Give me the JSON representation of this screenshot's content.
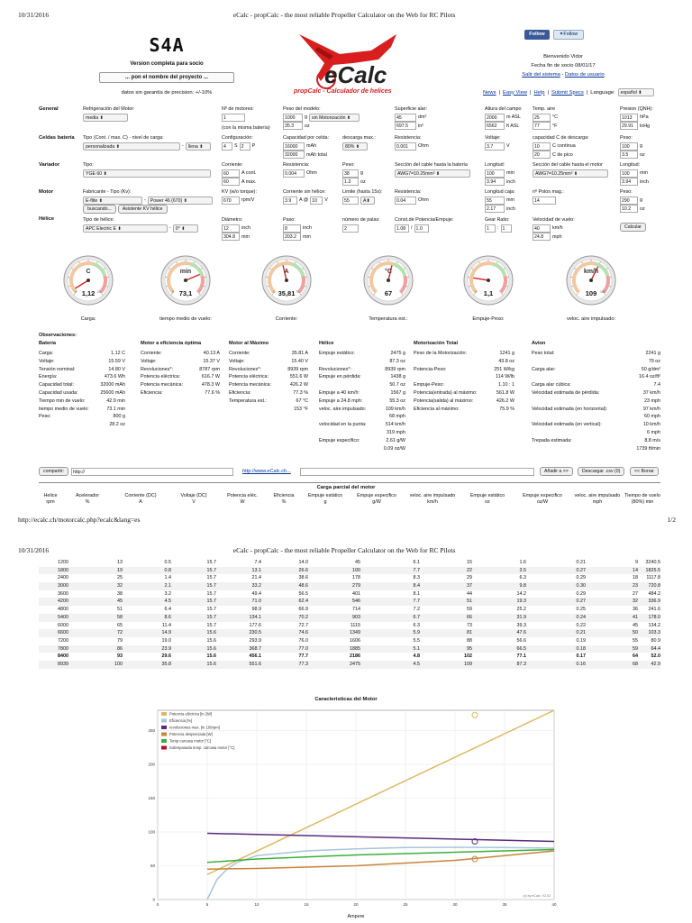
{
  "page": {
    "date": "10/31/2016",
    "title": "eCalc - propCalc - the most reliable Propeller Calculator on the Web for RC Pilots",
    "url": "http://ecalc.ch/motorcalc.php?ecalc&lang=es",
    "page_num_1": "1/2",
    "page_num_2": "2/2"
  },
  "brand": {
    "code": "S4A",
    "version": "Version completa para socio",
    "project": "... pon el nombre del proyecto ...",
    "guarantee": "datos sin garantía de precision: +/-10%",
    "logo_text": "eCalc",
    "tagline": "propCalc - Calculador de helices"
  },
  "social": {
    "facebook": "Follow",
    "twitter": "Follow"
  },
  "user": {
    "welcome": "Bienvenido Vidor",
    "expiry": "Fecha fin de socio 08/01/17",
    "logout": "Salir del sistema",
    "sep": " - ",
    "userdata": "Datos de usuario"
  },
  "nav": {
    "links": [
      "News",
      "Easy View",
      "Help",
      "Submit Specs"
    ],
    "lang_label": "Language:",
    "lang_value": "español"
  },
  "sections": {
    "general": "General",
    "celdas": "Celdas batería",
    "variador": "Variador",
    "motor": "Motor",
    "helice": "Hélice"
  },
  "general": {
    "refrig_label": "Refrigeración del Motor:",
    "refrig_value": "media",
    "motores_label": "Nº de motores:",
    "motores_value": "1",
    "motores_note": "(con la misma batería)",
    "peso_label": "Peso del modelo:",
    "peso_value": "1000",
    "peso_unit": "g",
    "peso_mot": "sin Motorización",
    "peso_oz": "35.3",
    "peso_oz_unit": "oz",
    "sup_label": "Superficie alar:",
    "sup_value": "45",
    "sup_unit": "dm²",
    "sup_in": "697.5",
    "sup_in_unit": "in²",
    "alt_label": "Altura del campo",
    "alt_m": "2000",
    "alt_m_unit": "m ASL",
    "alt_ft": "6562",
    "alt_ft_unit": "ft ASL",
    "temp_label": "Temp. aire",
    "temp_c": "25",
    "temp_c_unit": "°C",
    "temp_f": "77",
    "temp_f_unit": "°F",
    "pres_label": "Presion (QNH):",
    "pres_hpa": "1013",
    "pres_hpa_unit": "hPa",
    "pres_inhg": "29.91",
    "pres_inhg_unit": "inHg"
  },
  "celdas": {
    "tipo_label": "Tipo (Cont. / max. C) - nivel de carga:",
    "tipo_value": "personalizada",
    "nivel": "llena",
    "conf_label": "Configuración:",
    "conf_s": "4",
    "conf_s_unit": "S",
    "conf_p": "2",
    "conf_p_unit": "P",
    "cap_label": "Capacidad por celda:",
    "cap_value": "16000",
    "cap_unit": "mAh",
    "cap_total": "32000",
    "cap_total_unit": "mAh total",
    "desc_label": "descarga max.:",
    "desc_value": "80%",
    "res_label": "Resistencia:",
    "res_value": "0.001",
    "res_unit": "Ohm",
    "volt_label": "Voltaje:",
    "volt_value": "3.7",
    "volt_unit": "V",
    "capc_label": "capacidad C de descarga:",
    "capc_cont": "10",
    "capc_cont_unit": "C continua",
    "capc_pico": "20",
    "capc_pico_unit": "C de pico",
    "peso_label": "Peso:",
    "peso_g": "100",
    "peso_g_unit": "g",
    "peso_oz": "3.5",
    "peso_oz_unit": "oz"
  },
  "variador": {
    "tipo_label": "Tipo:",
    "tipo_value": "YGE 60",
    "corr_label": "Corriente:",
    "corr_cont": "60",
    "corr_cont_unit": "A cont.",
    "corr_max": "60",
    "corr_max_unit": "A max.",
    "res_label": "Resistencia:",
    "res_value": "0.004",
    "res_unit": "Ohm",
    "peso_label": "Peso:",
    "peso_g": "38",
    "peso_g_unit": "g",
    "peso_oz": "1.3",
    "peso_oz_unit": "oz",
    "cable_bat_label": "Sección del cable hasta la batería",
    "cable_bat_value": "AWG7=10.25mm²",
    "long_label": "Longitud:",
    "long_mm": "100",
    "long_mm_unit": "mm",
    "long_in": "3.94",
    "long_in_unit": "inch",
    "cable_mot_label": "Sección del cable hasta el motor",
    "cable_mot_value": "AWG7=10.25mm²",
    "long2_label": "Longitud:",
    "long2_mm": "100",
    "long2_mm_unit": "mm",
    "long2_in": "3.94",
    "long2_in_unit": "inch"
  },
  "motor": {
    "fab_label": "Fabricante - Tipo (Kv):",
    "fab_value": "E-flite",
    "tipo_value": "Power 46 (670)",
    "buscar": "buscando...",
    "asistente": "Asistente KV hélice",
    "kv_label": "KV (w/o torque):",
    "kv_value": "670",
    "kv_unit": "rpm/V",
    "csv_label": "Corriente sin hélice:",
    "csv_a": "3.9",
    "csv_a_unit": "A @",
    "csv_v": "10",
    "csv_v_unit": "V",
    "lim_label": "Limite (hasta 15s):",
    "lim_value": "55",
    "lim_unit": "A",
    "res_label": "Resistencia:",
    "res_value": "0.04",
    "res_unit": "Ohm",
    "caja_label": "Longitud caja:",
    "caja_mm": "55",
    "caja_mm_unit": "mm",
    "caja_in": "2.17",
    "caja_in_unit": "inch",
    "polos_label": "nº Polos mag.:",
    "polos_value": "14",
    "peso_label": "Peso:",
    "peso_g": "290",
    "peso_g_unit": "g",
    "peso_oz": "10.2",
    "peso_oz_unit": "oz"
  },
  "helice": {
    "tipo_label": "Tipo de hélice:",
    "tipo_value": "APC Electric E",
    "angle": "0°",
    "diam_label": "Diámetro:",
    "diam_in": "12",
    "diam_in_unit": "inch",
    "diam_mm": "304.8",
    "diam_mm_unit": "mm",
    "paso_label": "Paso:",
    "paso_in": "8",
    "paso_in_unit": "inch",
    "paso_mm": "203.2",
    "paso_mm_unit": "mm",
    "palas_label": "número de palas:",
    "palas_value": "2",
    "const_label": "Const.de Potencia/Empuje:",
    "const_p": "1.08",
    "const_e": "1.0",
    "gear_label": "Gear Ratio:",
    "gear_a": "1",
    "gear_b": "1",
    "vel_label": "Velocidad de vuelo:",
    "vel_kmh": "40",
    "vel_kmh_unit": "km/h",
    "vel_mph": "24.8",
    "vel_mph_unit": "mph",
    "calcular": "Calcular"
  },
  "gauges": [
    {
      "unit": "C",
      "value": "1,12",
      "label": "Carga:",
      "fraction": 0.05,
      "min": "0",
      "max": "25",
      "accent": "#2a6fd6"
    },
    {
      "unit": "min",
      "value": "73,1",
      "label": "tiempo medio de vuelo:",
      "fraction": 0.75,
      "min": "0",
      "max": "",
      "accent": "#2a6fd6"
    },
    {
      "unit": "A",
      "value": "35,81",
      "label": "Corriente:",
      "fraction": 0.45,
      "min": "0",
      "max": "75",
      "accent": "#2a6fd6"
    },
    {
      "unit": "°C",
      "value": "67",
      "label": "Temperatura est.:",
      "fraction": 0.55,
      "min": "",
      "max": "",
      "accent": "#2a6fd6"
    },
    {
      "unit": "",
      "value": "1,1",
      "label": "Empuje-Peso:",
      "fraction": 0.2,
      "min": "0",
      "max": "",
      "accent": "#2a6fd6"
    },
    {
      "unit": "km/h",
      "value": "109",
      "label": "veloc. aire impulsado:",
      "fraction": 0.6,
      "min": "",
      "max": "160",
      "accent": "#2a6fd6"
    }
  ],
  "results": {
    "obs": "Observaciones:",
    "bateria": {
      "title": "Batería",
      "rows": [
        [
          "Carga:",
          "1.12 C"
        ],
        [
          "Voltaje:",
          "15.59 V"
        ],
        [
          "Tensión nominal:",
          "14.80 V"
        ],
        [
          "Energía:",
          "473.6 Wh"
        ],
        [
          "Capacidad total:",
          "32000 mAh"
        ],
        [
          "Capacidad usada:",
          "25600 mAh"
        ],
        [
          "Tiempo min de vuelo:",
          "42.9 min"
        ],
        [
          "tiempo medio de vuelo:",
          "73.1 min"
        ],
        [
          "Peso:",
          "800 g"
        ],
        [
          "",
          "28.2 oz"
        ]
      ]
    },
    "optima": {
      "title": "Motor a eficiencia óptima",
      "rows": [
        [
          "Corriente:",
          "40.13 A"
        ],
        [
          "Voltaje:",
          "15.37 V"
        ],
        [
          "Revoluciones*:",
          "8787 rpm"
        ],
        [
          "Potencia eléctrica:",
          "616.7 W"
        ],
        [
          "Potencia mecánica:",
          "478.3 W"
        ],
        [
          "Eficiencia:",
          "77.6 %"
        ]
      ]
    },
    "maximo": {
      "title": "Motor al Máximo",
      "rows": [
        [
          "Corriente:",
          "35.81 A"
        ],
        [
          "Voltaje:",
          "15.40 V"
        ],
        [
          "Revoluciones*:",
          "8939 rpm"
        ],
        [
          "Potencia eléctrica:",
          "551.6 W"
        ],
        [
          "Potencia mecánica:",
          "426.2 W"
        ],
        [
          "Eficiencia:",
          "77.3 %"
        ],
        [
          "Temperatura est.:",
          "67 °C"
        ],
        [
          "",
          "153 °F"
        ]
      ]
    },
    "helice": {
      "title": "Hélice",
      "rows": [
        [
          "Empuje estático:",
          "2475 g"
        ],
        [
          "",
          "87.3 oz"
        ],
        [
          "Revoluciones*:",
          "8939 rpm"
        ],
        [
          "Empuje en pérdida:",
          "1438 g"
        ],
        [
          "",
          "50.7 oz"
        ],
        [
          "Empuje a 40 km/h:",
          "1567 g"
        ],
        [
          "Empuje a 24.8 mph:",
          "55.3 oz"
        ],
        [
          "veloc. aire impulsado:",
          "109 km/h"
        ],
        [
          "",
          "68 mph"
        ],
        [
          "velocidad en la punta:",
          "514 km/h"
        ],
        [
          "",
          "319 mph"
        ],
        [
          "Empuje específico:",
          "2.61 g/W"
        ],
        [
          "",
          "0.09 oz/W"
        ]
      ]
    },
    "motorizacion": {
      "title": "Motorización Total",
      "rows": [
        [
          "Peso de la Motorización:",
          "1241 g"
        ],
        [
          "",
          "43.8 oz"
        ],
        [
          "Potencia-Peso:",
          "251 W/kg"
        ],
        [
          "",
          "114 W/lb"
        ],
        [
          "Empuje-Peso:",
          "1.10 : 1"
        ],
        [
          "Potencia(entrada) al máximo:",
          "561.8 W"
        ],
        [
          "Potencia(salida) al máximo:",
          "426.2 W"
        ],
        [
          "Eficiencia al máximo:",
          "75.9 %"
        ]
      ]
    },
    "avion": {
      "title": "Avion",
      "rows": [
        [
          "Peso total:",
          "2241 g"
        ],
        [
          "",
          "79 oz"
        ],
        [
          "Carga alar:",
          "50 g/dm²"
        ],
        [
          "",
          "16.4 oz/ft²"
        ],
        [
          "Carga alar cúbica:",
          "7.4"
        ],
        [
          "Velocidad estimada de pérdida:",
          "37 km/h"
        ],
        [
          "",
          "23 mph"
        ],
        [
          "Velocidad estimada (en horizontal):",
          "97 km/h"
        ],
        [
          "",
          "60 mph"
        ],
        [
          "Velocidad estimada (en vertical):",
          "10 km/h"
        ],
        [
          "",
          "6 mph"
        ],
        [
          "Trepada estimada:",
          "8.8 m/s"
        ],
        [
          "",
          "1739 ft/min"
        ]
      ]
    }
  },
  "bottom": {
    "compartir": "compartir:",
    "share_url": "http://",
    "ecalc_link": "http://www.eCalc.ch...",
    "anadir": "Añadir a >>",
    "descargar": "Descargar .csv (0)",
    "borrar": "<< Borrar"
  },
  "cpm": {
    "title": "Carga parcial del motor",
    "headers": [
      [
        "Helice",
        "rpm"
      ],
      [
        "Acelerador",
        "%"
      ],
      [
        "Corriente (DC)",
        "A"
      ],
      [
        "Voltaje (DC)",
        "V"
      ],
      [
        "Potencia eléc.",
        "W"
      ],
      [
        "Eficiencia",
        "%"
      ],
      [
        "Empuje estático",
        "g"
      ],
      [
        "Empuje especifico",
        "g/W"
      ],
      [
        "veloc. aire impulsado",
        "km/h"
      ],
      [
        "Empuje estático",
        "oz"
      ],
      [
        "Empuje especifico",
        "oz/W"
      ],
      [
        "veloc. aire impulsado",
        "mph"
      ],
      [
        "Tiempo de vuelo",
        "(80%) min"
      ]
    ],
    "rows": [
      [
        "1200",
        "13",
        "0.5",
        "15.7",
        "7.4",
        "14.0",
        "45",
        "6.1",
        "15",
        "1.6",
        "0.21",
        "9",
        "3240.5"
      ],
      [
        "1800",
        "19",
        "0.8",
        "15.7",
        "13.1",
        "26.6",
        "100",
        "7.7",
        "22",
        "3.5",
        "0.27",
        "14",
        "1825.5"
      ],
      [
        "2400",
        "25",
        "1.4",
        "15.7",
        "21.4",
        "38.6",
        "178",
        "8.3",
        "29",
        "6.3",
        "0.29",
        "18",
        "1117.8"
      ],
      [
        "3000",
        "32",
        "2.1",
        "15.7",
        "33.2",
        "48.6",
        "279",
        "8.4",
        "37",
        "9.8",
        "0.30",
        "23",
        "720.8"
      ],
      [
        "3600",
        "38",
        "3.2",
        "15.7",
        "49.4",
        "56.5",
        "401",
        "8.1",
        "44",
        "14.2",
        "0.29",
        "27",
        "484.2"
      ],
      [
        "4200",
        "45",
        "4.5",
        "15.7",
        "71.0",
        "62.4",
        "546",
        "7.7",
        "51",
        "19.3",
        "0.27",
        "32",
        "336.9"
      ],
      [
        "4800",
        "51",
        "6.4",
        "15.7",
        "98.9",
        "66.9",
        "714",
        "7.2",
        "59",
        "25.2",
        "0.25",
        "36",
        "241.6"
      ],
      [
        "5400",
        "58",
        "8.6",
        "15.7",
        "134.1",
        "70.2",
        "903",
        "6.7",
        "66",
        "31.9",
        "0.24",
        "41",
        "178.0"
      ],
      [
        "6000",
        "65",
        "11.4",
        "15.7",
        "177.6",
        "72.7",
        "1115",
        "6.3",
        "73",
        "39.3",
        "0.22",
        "45",
        "134.2"
      ],
      [
        "6600",
        "72",
        "14.9",
        "15.6",
        "230.5",
        "74.6",
        "1349",
        "5.9",
        "81",
        "47.6",
        "0.21",
        "50",
        "103.3"
      ],
      [
        "7200",
        "79",
        "19.0",
        "15.6",
        "293.9",
        "76.0",
        "1606",
        "5.5",
        "88",
        "56.6",
        "0.19",
        "55",
        "80.9"
      ],
      [
        "7800",
        "86",
        "23.9",
        "15.6",
        "368.7",
        "77.0",
        "1885",
        "5.1",
        "95",
        "66.5",
        "0.18",
        "59",
        "64.4"
      ],
      [
        "8400",
        "93",
        "29.6",
        "15.6",
        "456.1",
        "77.7",
        "2186",
        "4.8",
        "102",
        "77.1",
        "0.17",
        "64",
        "52.0"
      ],
      [
        "8939",
        "100",
        "35.8",
        "15.6",
        "551.6",
        "77.3",
        "2475",
        "4.5",
        "109",
        "87.3",
        "0.16",
        "68",
        "42.9"
      ]
    ]
  },
  "chart_data": {
    "type": "line",
    "title": "Caracteristicas del Motor",
    "xlabel": "Ampere",
    "ylabel": "",
    "xlim": [
      0,
      40
    ],
    "ylim": [
      0,
      280
    ],
    "xticks": [
      0,
      5,
      10,
      15,
      20,
      25,
      30,
      35,
      40
    ],
    "yticks": [
      0,
      50,
      100,
      150,
      200,
      250
    ],
    "grid": true,
    "legend_position": "top-left",
    "credit": "(c) by eCalc. V2.02",
    "series": [
      {
        "name": "Potencia eléctrica [in 2W]",
        "color": "#e0b860",
        "x": [
          5,
          40
        ],
        "y": [
          37,
          280
        ]
      },
      {
        "name": "Eficiencia [%]",
        "color": "#a9c4dc",
        "x": [
          5,
          6,
          7,
          8,
          10,
          15,
          20,
          25,
          30,
          35,
          40
        ],
        "y": [
          0,
          30,
          45,
          55,
          65,
          72,
          75,
          77,
          77.3,
          77,
          76
        ]
      },
      {
        "name": "revoluciones max. [in 100rpm]",
        "color": "#5a2a7a",
        "x": [
          5,
          40
        ],
        "y": [
          98,
          86
        ]
      },
      {
        "name": "Potencia despreciada [W]",
        "color": "#c8853a",
        "x": [
          5,
          10,
          20,
          30,
          40
        ],
        "y": [
          45,
          46,
          50,
          58,
          72
        ]
      },
      {
        "name": "Temp carcasa motor [°C]",
        "color": "#3ab03a",
        "x": [
          5,
          10,
          20,
          30,
          40
        ],
        "y": [
          55,
          60,
          66,
          70,
          74
        ]
      },
      {
        "name": "Sobrepasada temp. carcasa motor [°C]",
        "color": "#b0102a",
        "x": [],
        "y": []
      }
    ],
    "markers": [
      {
        "x": 32,
        "y": 273,
        "color": "#e0b860"
      },
      {
        "x": 32,
        "y": 86,
        "color": "#5a2a7a"
      },
      {
        "x": 32,
        "y": 60,
        "color": "#c8853a"
      }
    ]
  }
}
